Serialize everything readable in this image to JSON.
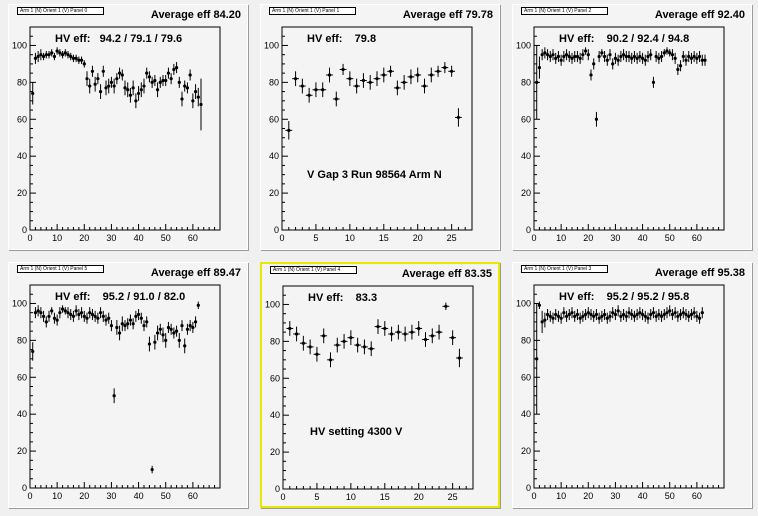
{
  "pads": [
    {
      "pad_label": "Arm 1 (N) Orient 1 (V) Panel 0",
      "average_label": "Average eff 84.20",
      "hv_label": "HV eff:   94.2 / 79.1 / 79.6",
      "selected": false,
      "chart_data": {
        "type": "scatter",
        "x": [
          1,
          2,
          3,
          4,
          5,
          6,
          7,
          8,
          9,
          10,
          11,
          12,
          13,
          14,
          15,
          16,
          17,
          18,
          19,
          20,
          21,
          22,
          23,
          24,
          25,
          26,
          27,
          28,
          29,
          30,
          31,
          32,
          33,
          34,
          35,
          36,
          37,
          38,
          39,
          40,
          41,
          42,
          43,
          44,
          45,
          46,
          47,
          48,
          49,
          50,
          51,
          52,
          53,
          54,
          55,
          56,
          57,
          58,
          59,
          60,
          61,
          62,
          63
        ],
        "y": [
          74,
          93,
          94,
          95,
          94,
          95,
          95,
          96,
          94,
          97,
          96,
          95,
          96,
          95,
          94,
          93,
          93,
          92,
          92,
          90,
          82,
          78,
          86,
          79,
          82,
          75,
          86,
          77,
          78,
          80,
          78,
          82,
          85,
          84,
          77,
          76,
          73,
          77,
          70,
          74,
          76,
          78,
          85,
          83,
          80,
          81,
          76,
          80,
          81,
          81,
          85,
          82,
          87,
          88,
          80,
          71,
          78,
          77,
          84,
          70,
          75,
          72,
          68
        ],
        "err": [
          6,
          3,
          3,
          3,
          2,
          2,
          2,
          2,
          2,
          2,
          2,
          2,
          2,
          2,
          2,
          2,
          2,
          2,
          2,
          2,
          4,
          4,
          3,
          4,
          3,
          4,
          3,
          4,
          4,
          3,
          4,
          3,
          3,
          3,
          4,
          4,
          4,
          4,
          4,
          4,
          4,
          4,
          3,
          3,
          3,
          3,
          4,
          3,
          3,
          3,
          3,
          3,
          3,
          3,
          3,
          4,
          3,
          3,
          3,
          4,
          4,
          5,
          14
        ],
        "xlim": [
          0,
          70
        ],
        "ylim": [
          0,
          110
        ],
        "xticks": [
          0,
          10,
          20,
          30,
          40,
          50,
          60
        ],
        "yticks": [
          0,
          20,
          40,
          60,
          80,
          100
        ]
      }
    },
    {
      "pad_label": "Arm 1 (N) Orient 1 (V) Panel 1",
      "average_label": "Average eff 79.78",
      "hv_label": "HV eff:    79.8",
      "note": "V Gap 3 Run 98564 Arm N",
      "selected": false,
      "chart_data": {
        "type": "scatter",
        "x": [
          1,
          2,
          3,
          4,
          5,
          6,
          7,
          8,
          9,
          10,
          11,
          12,
          13,
          14,
          15,
          16,
          17,
          18,
          19,
          20,
          21,
          22,
          23,
          24,
          25,
          26
        ],
        "y": [
          54,
          82,
          78,
          73,
          76,
          76,
          84,
          71,
          87,
          82,
          78,
          81,
          80,
          82,
          84,
          86,
          77,
          80,
          83,
          84,
          78,
          84,
          86,
          88,
          86,
          61
        ],
        "err": [
          5,
          4,
          4,
          4,
          4,
          4,
          4,
          4,
          3,
          4,
          4,
          4,
          4,
          4,
          4,
          3,
          4,
          4,
          4,
          4,
          4,
          4,
          3,
          3,
          3,
          5
        ],
        "xlim": [
          0,
          28
        ],
        "ylim": [
          0,
          110
        ],
        "xticks": [
          0,
          5,
          10,
          15,
          20,
          25
        ],
        "yticks": [
          0,
          20,
          40,
          60,
          80,
          100
        ]
      }
    },
    {
      "pad_label": "Arm 1 (N) Orient 1 (V) Panel 2",
      "average_label": "Average eff 92.40",
      "hv_label": "HV eff:    90.2 / 92.4 / 94.8",
      "selected": false,
      "chart_data": {
        "type": "scatter",
        "x": [
          1,
          2,
          3,
          4,
          5,
          6,
          7,
          8,
          9,
          10,
          11,
          12,
          13,
          14,
          15,
          16,
          17,
          18,
          19,
          20,
          21,
          22,
          23,
          24,
          25,
          26,
          27,
          28,
          29,
          30,
          31,
          32,
          33,
          34,
          35,
          36,
          37,
          38,
          39,
          40,
          41,
          42,
          43,
          44,
          45,
          46,
          47,
          48,
          49,
          50,
          51,
          52,
          53,
          54,
          55,
          56,
          57,
          58,
          59,
          60,
          61,
          62,
          63
        ],
        "y": [
          80,
          88,
          95,
          96,
          95,
          94,
          95,
          93,
          94,
          92,
          94,
          95,
          94,
          93,
          94,
          94,
          93,
          95,
          97,
          95,
          84,
          90,
          60,
          94,
          96,
          94,
          92,
          95,
          90,
          93,
          92,
          94,
          95,
          94,
          94,
          93,
          94,
          93,
          94,
          93,
          92,
          94,
          95,
          80,
          94,
          93,
          94,
          96,
          97,
          96,
          95,
          93,
          87,
          89,
          94,
          92,
          94,
          93,
          94,
          93,
          94,
          92,
          92
        ],
        "err": [
          20,
          6,
          3,
          3,
          3,
          3,
          3,
          3,
          3,
          3,
          3,
          3,
          3,
          3,
          3,
          3,
          3,
          3,
          2,
          3,
          3,
          3,
          4,
          3,
          2,
          3,
          3,
          3,
          3,
          3,
          3,
          3,
          3,
          3,
          3,
          3,
          3,
          3,
          3,
          3,
          3,
          3,
          3,
          3,
          3,
          3,
          3,
          2,
          2,
          2,
          3,
          3,
          3,
          3,
          3,
          3,
          3,
          3,
          3,
          3,
          3,
          3,
          3
        ],
        "xlim": [
          0,
          70
        ],
        "ylim": [
          0,
          110
        ],
        "xticks": [
          0,
          10,
          20,
          30,
          40,
          50,
          60
        ],
        "yticks": [
          0,
          20,
          40,
          60,
          80,
          100
        ]
      }
    },
    {
      "pad_label": "Arm 1 (N) Orient 1 (V) Panel 5",
      "average_label": "Average eff 89.47",
      "hv_label": "HV eff:    95.2 / 91.0 / 82.0",
      "selected": false,
      "chart_data": {
        "type": "scatter",
        "x": [
          1,
          2,
          3,
          4,
          5,
          6,
          7,
          8,
          9,
          10,
          11,
          12,
          13,
          14,
          15,
          16,
          17,
          18,
          19,
          20,
          21,
          22,
          23,
          24,
          25,
          26,
          27,
          28,
          29,
          30,
          31,
          32,
          33,
          34,
          35,
          36,
          37,
          38,
          39,
          40,
          41,
          42,
          43,
          44,
          45,
          46,
          47,
          48,
          49,
          50,
          51,
          52,
          53,
          54,
          55,
          56,
          57,
          58,
          59,
          60,
          61,
          62
        ],
        "y": [
          74,
          95,
          96,
          95,
          93,
          90,
          93,
          96,
          92,
          91,
          95,
          97,
          96,
          95,
          94,
          93,
          96,
          94,
          95,
          93,
          92,
          95,
          94,
          93,
          92,
          95,
          93,
          91,
          92,
          88,
          50,
          87,
          84,
          89,
          88,
          89,
          91,
          89,
          93,
          94,
          92,
          88,
          90,
          78,
          10,
          79,
          84,
          86,
          83,
          80,
          87,
          86,
          84,
          85,
          80,
          88,
          77,
          86,
          88,
          87,
          90,
          99
        ],
        "err": [
          5,
          3,
          3,
          3,
          3,
          3,
          3,
          2,
          3,
          3,
          3,
          2,
          2,
          3,
          3,
          3,
          3,
          3,
          3,
          3,
          3,
          3,
          3,
          3,
          3,
          3,
          3,
          3,
          3,
          3,
          4,
          4,
          4,
          4,
          3,
          3,
          3,
          3,
          3,
          3,
          3,
          3,
          3,
          4,
          2,
          4,
          4,
          3,
          4,
          4,
          3,
          3,
          3,
          3,
          4,
          3,
          4,
          3,
          3,
          3,
          3,
          2
        ],
        "xlim": [
          0,
          70
        ],
        "ylim": [
          0,
          110
        ],
        "xticks": [
          0,
          10,
          20,
          30,
          40,
          50,
          60
        ],
        "yticks": [
          0,
          20,
          40,
          60,
          80,
          100
        ]
      }
    },
    {
      "pad_label": "Arm 1 (N) Orient 1 (V) Panel 4",
      "average_label": "Average eff 83.35",
      "hv_label": "HV eff:    83.3",
      "note": "HV setting 4300 V",
      "selected": true,
      "chart_data": {
        "type": "scatter",
        "x": [
          1,
          2,
          3,
          4,
          5,
          6,
          7,
          8,
          9,
          10,
          11,
          12,
          13,
          14,
          15,
          16,
          17,
          18,
          19,
          20,
          21,
          22,
          23,
          24,
          25,
          26
        ],
        "y": [
          87,
          84,
          79,
          77,
          73,
          83,
          70,
          78,
          80,
          82,
          78,
          77,
          76,
          88,
          87,
          84,
          85,
          84,
          85,
          87,
          81,
          83,
          85,
          99,
          82,
          71
        ],
        "err": [
          4,
          4,
          4,
          4,
          4,
          4,
          4,
          4,
          4,
          4,
          4,
          4,
          4,
          4,
          4,
          4,
          4,
          4,
          4,
          4,
          4,
          4,
          4,
          2,
          4,
          5
        ],
        "xlim": [
          0,
          28
        ],
        "ylim": [
          0,
          110
        ],
        "xticks": [
          0,
          5,
          10,
          15,
          20,
          25
        ],
        "yticks": [
          0,
          20,
          40,
          60,
          80,
          100
        ]
      }
    },
    {
      "pad_label": "Arm 1 (N) Orient 1 (V) Panel 3",
      "average_label": "Average eff 95.38",
      "hv_label": "HV eff:    95.2 / 95.2 / 95.8",
      "selected": false,
      "chart_data": {
        "type": "scatter",
        "x": [
          1,
          2,
          3,
          4,
          5,
          6,
          7,
          8,
          9,
          10,
          11,
          12,
          13,
          14,
          15,
          16,
          17,
          18,
          19,
          20,
          21,
          22,
          23,
          24,
          25,
          26,
          27,
          28,
          29,
          30,
          31,
          32,
          33,
          34,
          35,
          36,
          37,
          38,
          39,
          40,
          41,
          42,
          43,
          44,
          45,
          46,
          47,
          48,
          49,
          50,
          51,
          52,
          53,
          54,
          55,
          56,
          57,
          58,
          59,
          60,
          61,
          62
        ],
        "y": [
          70,
          99,
          90,
          91,
          94,
          93,
          92,
          94,
          93,
          92,
          95,
          93,
          94,
          95,
          93,
          94,
          92,
          93,
          94,
          95,
          94,
          93,
          94,
          92,
          93,
          94,
          92,
          93,
          95,
          94,
          96,
          93,
          94,
          93,
          95,
          94,
          93,
          94,
          95,
          94,
          93,
          92,
          94,
          95,
          93,
          94,
          93,
          94,
          95,
          96,
          94,
          95,
          93,
          94,
          95,
          94,
          93,
          94,
          95,
          93,
          92,
          95
        ],
        "err": [
          30,
          2,
          6,
          4,
          3,
          3,
          3,
          3,
          3,
          3,
          3,
          3,
          3,
          3,
          3,
          3,
          3,
          3,
          3,
          3,
          3,
          3,
          3,
          3,
          3,
          3,
          3,
          3,
          3,
          3,
          3,
          3,
          3,
          3,
          3,
          3,
          3,
          3,
          3,
          3,
          3,
          3,
          3,
          3,
          3,
          3,
          3,
          3,
          3,
          3,
          3,
          3,
          3,
          3,
          3,
          3,
          3,
          3,
          3,
          3,
          3,
          3
        ],
        "xlim": [
          0,
          70
        ],
        "ylim": [
          0,
          110
        ],
        "xticks": [
          0,
          10,
          20,
          30,
          40,
          50,
          60
        ],
        "yticks": [
          0,
          20,
          40,
          60,
          80,
          100
        ]
      }
    }
  ]
}
